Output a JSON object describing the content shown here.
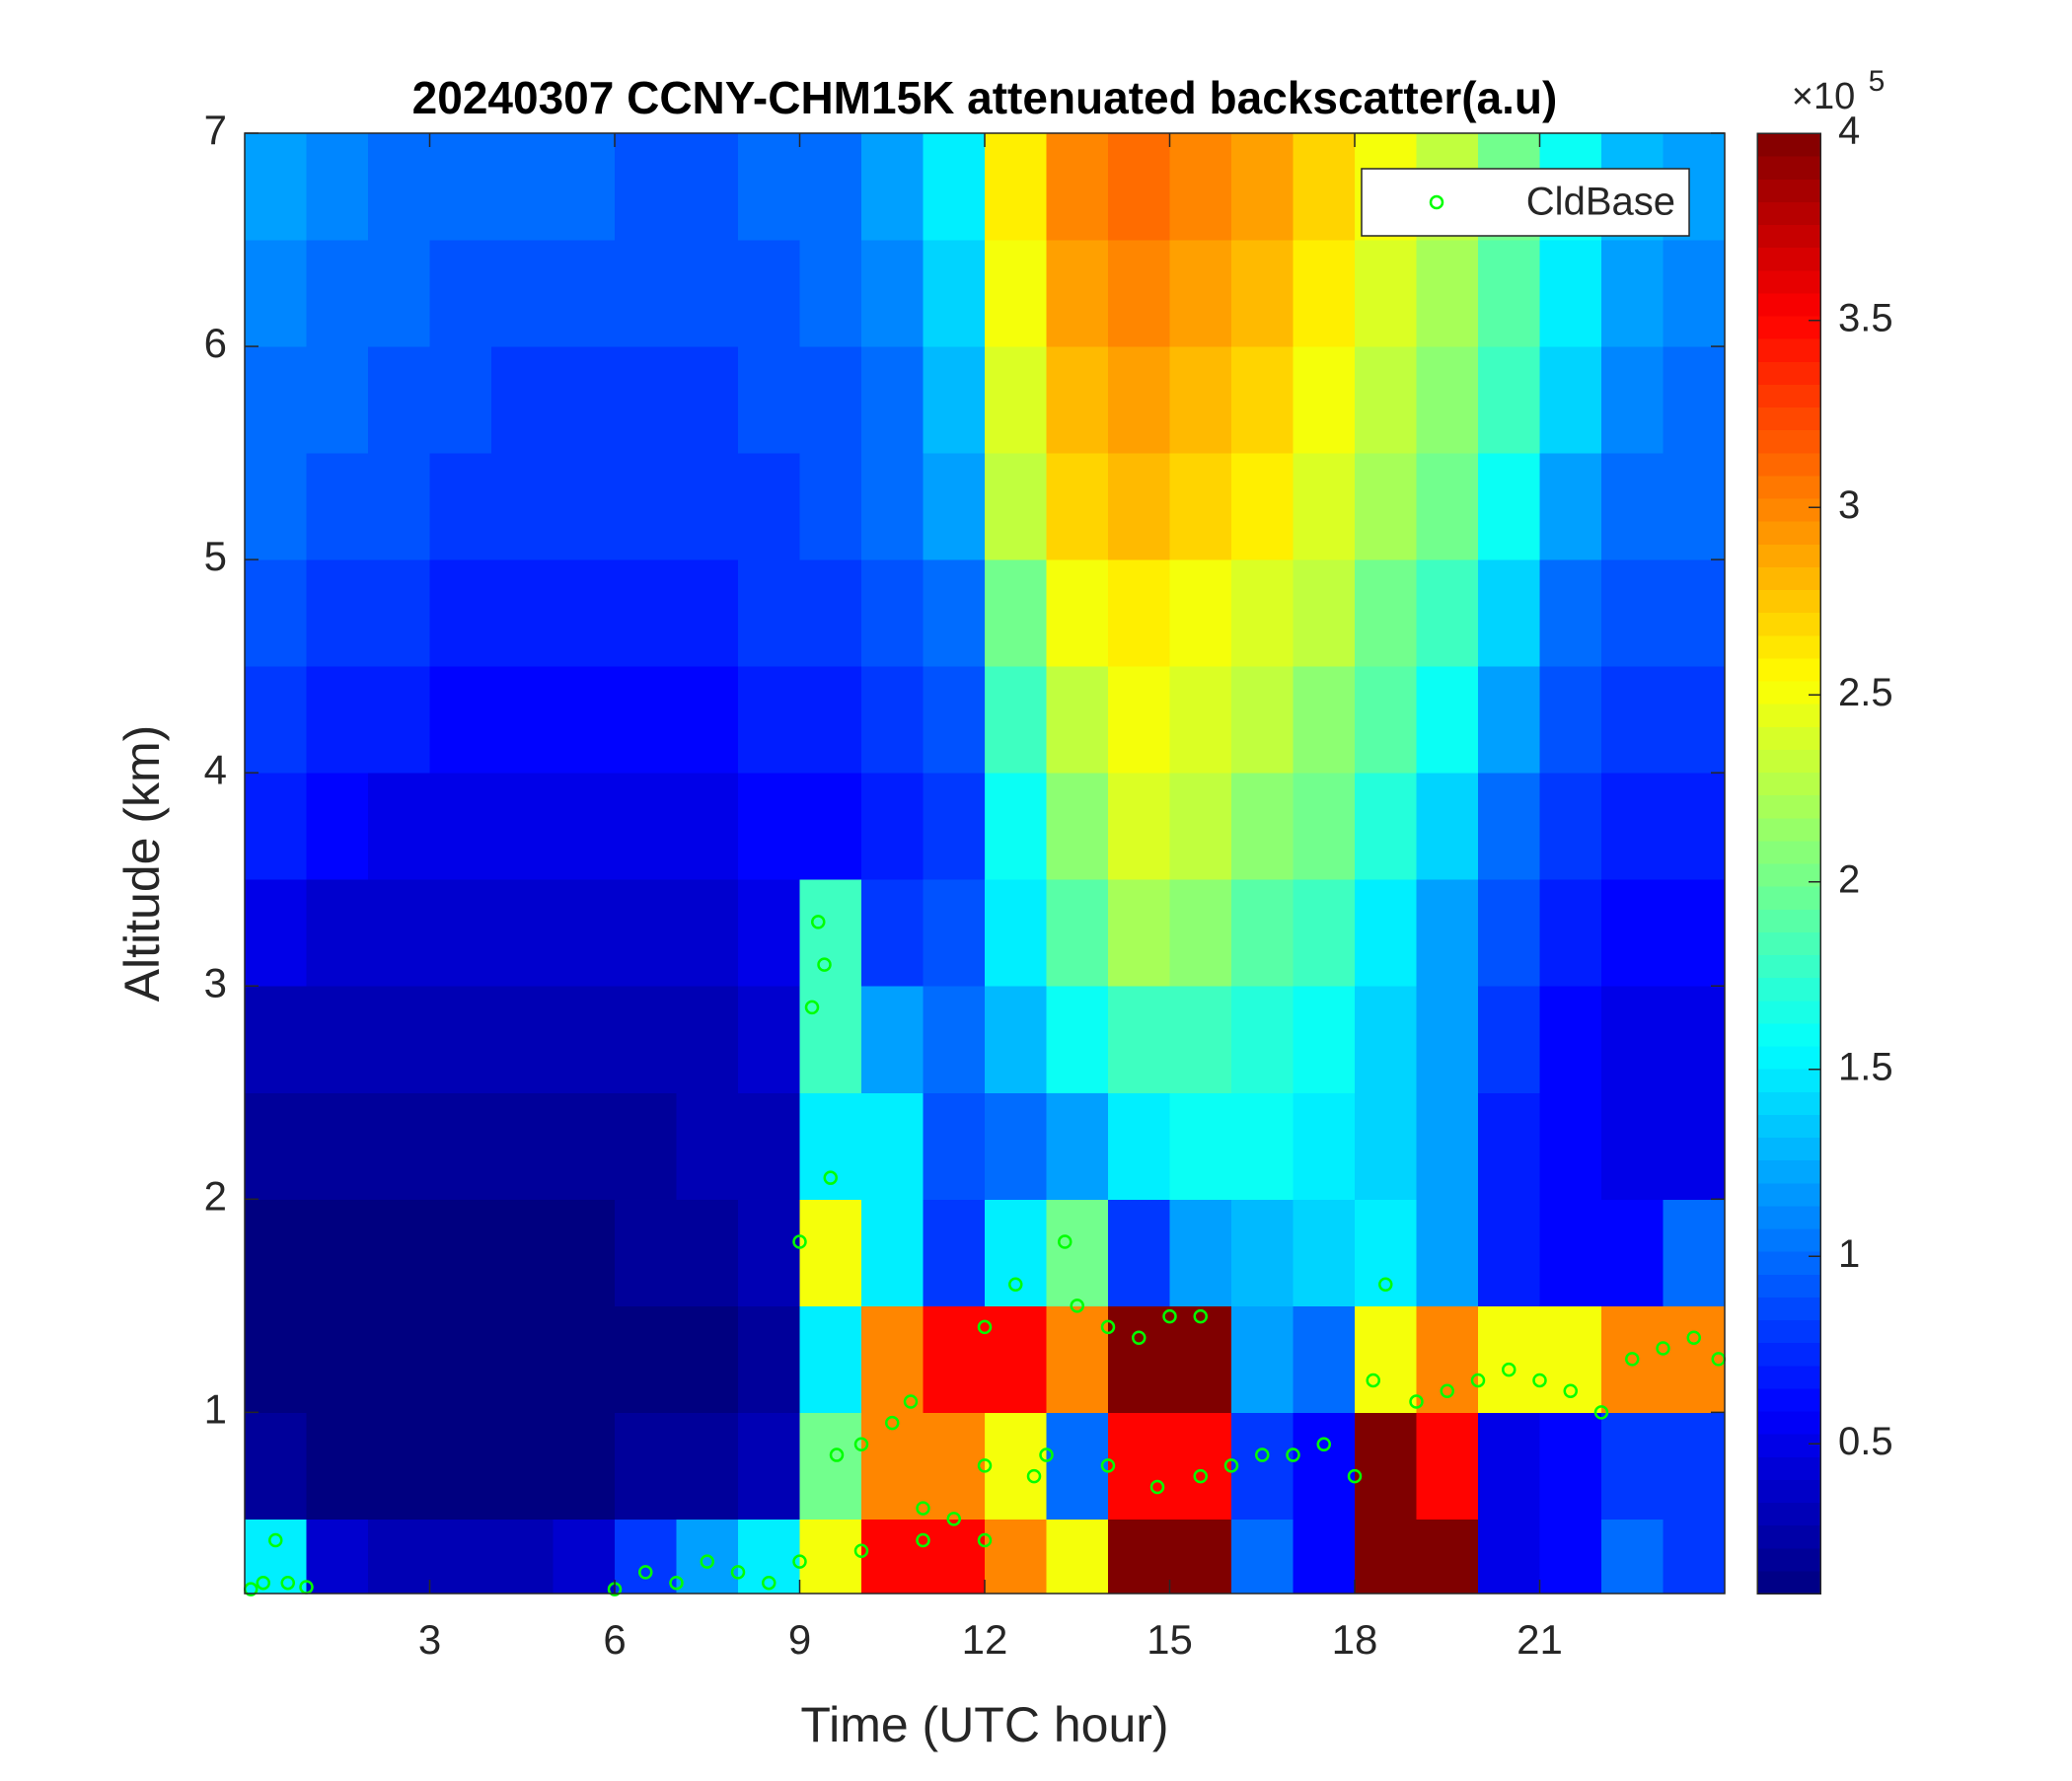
{
  "chart_data": {
    "type": "heatmap",
    "title": "20240307 CCNY-CHM15K attenuated backscatter(a.u)",
    "x_label": "Time (UTC hour)",
    "y_label": "Altitude (km)",
    "xlim": [
      0,
      24
    ],
    "ylim": [
      0.15,
      7
    ],
    "xticks": [
      3,
      6,
      9,
      12,
      15,
      18,
      21
    ],
    "yticks": [
      1,
      2,
      3,
      4,
      5,
      6,
      7
    ],
    "x_edges": [
      0,
      1,
      2,
      3,
      4,
      5,
      6,
      7,
      8,
      9,
      10,
      11,
      12,
      13,
      14,
      15,
      16,
      17,
      18,
      19,
      20,
      21,
      22,
      23,
      24
    ],
    "y_edges": [
      0.15,
      0.5,
      1,
      1.5,
      2,
      2.5,
      3,
      3.5,
      4,
      4.5,
      5,
      5.5,
      6,
      6.5,
      7
    ],
    "values": [
      [
        1.5,
        0.4,
        0.3,
        0.3,
        0.3,
        0.4,
        0.8,
        1.2,
        1.5,
        2.5,
        3.5,
        3.5,
        3,
        2.5,
        4,
        4,
        1,
        0.6,
        4,
        4,
        0.5,
        0.6,
        1,
        0.8
      ],
      [
        0.2,
        0.1,
        0.1,
        0.1,
        0.1,
        0.1,
        0.2,
        0.2,
        0.3,
        2,
        3,
        3,
        2.5,
        1,
        3.5,
        3.5,
        0.8,
        0.6,
        4,
        3.5,
        0.5,
        0.6,
        0.8,
        0.8
      ],
      [
        0.1,
        0.1,
        0.1,
        0.1,
        0.1,
        0.1,
        0.1,
        0.1,
        0.2,
        1.5,
        3,
        3.5,
        3.5,
        3,
        4,
        4,
        1.2,
        1,
        2.5,
        3,
        2.5,
        2.5,
        3,
        3
      ],
      [
        0.1,
        0.1,
        0.1,
        0.1,
        0.1,
        0.1,
        0.2,
        0.2,
        0.3,
        2.5,
        1.5,
        0.8,
        1.5,
        2,
        0.8,
        1.2,
        1.3,
        1.4,
        1.5,
        1.2,
        0.7,
        0.6,
        0.6,
        1
      ],
      [
        0.2,
        0.2,
        0.2,
        0.2,
        0.2,
        0.2,
        0.2,
        0.3,
        0.3,
        1.5,
        1.5,
        0.9,
        1,
        1.2,
        1.5,
        1.6,
        1.6,
        1.5,
        1.4,
        1.2,
        0.7,
        0.6,
        0.5,
        0.5
      ],
      [
        0.3,
        0.3,
        0.3,
        0.3,
        0.3,
        0.3,
        0.3,
        0.3,
        0.4,
        1.8,
        1.2,
        1,
        1.3,
        1.6,
        1.8,
        1.8,
        1.7,
        1.6,
        1.4,
        1.2,
        0.8,
        0.6,
        0.5,
        0.5
      ],
      [
        0.5,
        0.4,
        0.4,
        0.4,
        0.4,
        0.4,
        0.4,
        0.4,
        0.5,
        1.8,
        0.8,
        0.9,
        1.5,
        1.9,
        2.2,
        2.1,
        1.9,
        1.8,
        1.5,
        1.2,
        0.9,
        0.7,
        0.6,
        0.6
      ],
      [
        0.7,
        0.6,
        0.5,
        0.5,
        0.5,
        0.5,
        0.5,
        0.5,
        0.6,
        0.6,
        0.7,
        0.8,
        1.6,
        2.1,
        2.4,
        2.3,
        2.1,
        2,
        1.7,
        1.4,
        1,
        0.8,
        0.7,
        0.7
      ],
      [
        0.8,
        0.7,
        0.7,
        0.6,
        0.6,
        0.6,
        0.6,
        0.6,
        0.7,
        0.7,
        0.8,
        0.9,
        1.8,
        2.3,
        2.5,
        2.4,
        2.3,
        2.1,
        1.9,
        1.6,
        1.2,
        0.9,
        0.8,
        0.8
      ],
      [
        0.9,
        0.8,
        0.8,
        0.7,
        0.7,
        0.7,
        0.7,
        0.7,
        0.8,
        0.8,
        0.9,
        1,
        2,
        2.5,
        2.6,
        2.5,
        2.4,
        2.3,
        2,
        1.8,
        1.4,
        1,
        0.9,
        0.9
      ],
      [
        1,
        0.9,
        0.9,
        0.8,
        0.8,
        0.8,
        0.8,
        0.8,
        0.8,
        0.9,
        1,
        1.2,
        2.3,
        2.7,
        2.8,
        2.7,
        2.6,
        2.4,
        2.2,
        2,
        1.6,
        1.2,
        1,
        1
      ],
      [
        1,
        1,
        0.9,
        0.9,
        0.8,
        0.8,
        0.8,
        0.8,
        0.9,
        0.9,
        1,
        1.3,
        2.4,
        2.8,
        2.9,
        2.8,
        2.7,
        2.5,
        2.3,
        2.1,
        1.8,
        1.4,
        1.1,
        1
      ],
      [
        1.1,
        1,
        1,
        0.9,
        0.9,
        0.9,
        0.9,
        0.9,
        0.9,
        1,
        1.1,
        1.4,
        2.5,
        2.9,
        3,
        2.9,
        2.8,
        2.6,
        2.4,
        2.2,
        1.9,
        1.5,
        1.2,
        1.1
      ],
      [
        1.2,
        1.1,
        1,
        1,
        1,
        1,
        0.9,
        0.9,
        1,
        1,
        1.2,
        1.5,
        2.6,
        3,
        3.1,
        3,
        2.9,
        2.7,
        2.5,
        2.3,
        2,
        1.6,
        1.3,
        1.2
      ]
    ],
    "colormap": "jet",
    "clim": [
      0.1,
      4
    ],
    "colorbar_ticks": [
      0.5,
      1,
      1.5,
      2,
      2.5,
      3,
      3.5,
      4
    ],
    "colorbar_multiplier": {
      "base": "×10",
      "exponent": "5"
    },
    "overlay": {
      "type": "scatter",
      "name": "CldBase",
      "color": "#00ff00",
      "x": [
        0.1,
        0.3,
        0.5,
        0.7,
        1.0,
        6.0,
        6.5,
        7.0,
        7.5,
        8.0,
        8.5,
        9.0,
        9.0,
        9.3,
        9.4,
        9.2,
        9.5,
        9.6,
        10.0,
        10.5,
        10.8,
        10.0,
        11.0,
        11.5,
        11.0,
        12.0,
        12.0,
        12.5,
        12.0,
        12.8,
        13.3,
        13.5,
        14.0,
        14.5,
        15.0,
        15.5,
        13.0,
        14.0,
        14.8,
        15.5,
        16.0,
        16.5,
        17.0,
        17.5,
        18.0,
        18.3,
        18.5,
        19.0,
        19.5,
        20.0,
        20.5,
        21.0,
        21.5,
        22.0,
        22.5,
        23.0,
        23.5,
        23.9
      ],
      "y": [
        0.17,
        0.2,
        0.4,
        0.2,
        0.18,
        0.17,
        0.25,
        0.2,
        0.3,
        0.25,
        0.2,
        0.3,
        1.8,
        3.3,
        3.1,
        2.9,
        2.1,
        0.8,
        0.85,
        0.95,
        1.05,
        0.35,
        0.4,
        0.5,
        0.55,
        0.75,
        1.4,
        1.6,
        0.4,
        0.7,
        1.8,
        1.5,
        1.4,
        1.35,
        1.45,
        1.45,
        0.8,
        0.75,
        0.65,
        0.7,
        0.75,
        0.8,
        0.8,
        0.85,
        0.7,
        1.15,
        1.6,
        1.05,
        1.1,
        1.15,
        1.2,
        1.15,
        1.1,
        1.0,
        1.25,
        1.3,
        1.35,
        1.25
      ]
    },
    "legend": "northeast"
  }
}
